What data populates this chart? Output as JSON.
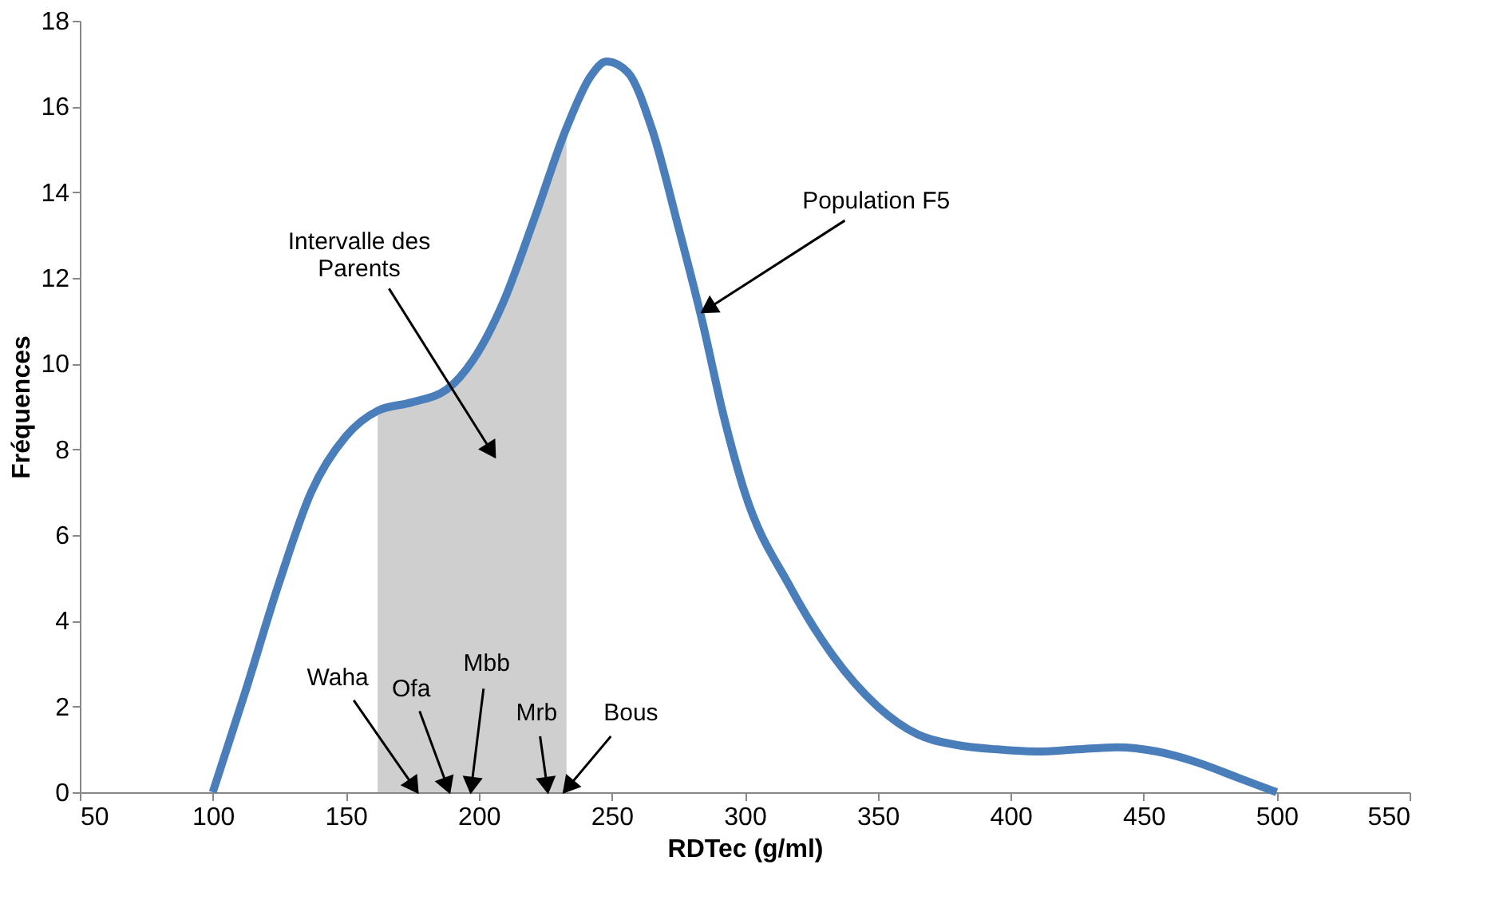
{
  "chart_data": {
    "type": "line",
    "xlabel": "RDTec (g/ml)",
    "ylabel": "Fréquences",
    "x": [
      100,
      112,
      125,
      137,
      150,
      162,
      175,
      188,
      198,
      209,
      221,
      233,
      242,
      248,
      256,
      265,
      275,
      284,
      292,
      300,
      317,
      333,
      350,
      365,
      380,
      395,
      410,
      425,
      440,
      455,
      470,
      485,
      500
    ],
    "series": [
      {
        "color": "#4a7ebb",
        "values": [
          0,
          2.3,
          4.9,
          7.0,
          8.3,
          8.9,
          9.1,
          9.4,
          10.1,
          11.4,
          13.4,
          15.5,
          16.7,
          17.05,
          16.8,
          15.5,
          13.2,
          11.0,
          8.8,
          7.0,
          4.8,
          3.2,
          2.0,
          1.35,
          1.1,
          1.0,
          0.95,
          1.0,
          1.05,
          0.95,
          0.7,
          0.35,
          0
        ]
      },
      {
        "type": "area",
        "color": "#cfcfcf",
        "x": [
          162,
          175,
          188,
          198,
          209,
          221,
          233
        ],
        "values": [
          8.9,
          9.1,
          9.4,
          10.1,
          11.4,
          13.4,
          15.5
        ]
      }
    ],
    "xlim": [
      50,
      550
    ],
    "xticks": [
      50,
      100,
      150,
      200,
      250,
      300,
      350,
      400,
      450,
      500,
      550
    ],
    "ylim": [
      0,
      18
    ],
    "yticks": [
      0,
      2,
      4,
      6,
      8,
      10,
      12,
      14,
      16,
      18
    ],
    "annotations": [
      {
        "text": "Population F5",
        "x": 284,
        "y": 11.2
      },
      "Intervalle des\nParents",
      {
        "text": "Waha",
        "x": 177,
        "y": 0
      },
      {
        "text": "Ofa",
        "x": 189,
        "y": 0
      },
      {
        "text": "Mbb",
        "x": 197,
        "y": 0
      },
      {
        "text": "Mrb",
        "x": 226,
        "y": 0
      },
      {
        "text": "Bous",
        "x": 232,
        "y": 0
      }
    ],
    "grid": false,
    "marker": "none",
    "line_style": "solid"
  }
}
